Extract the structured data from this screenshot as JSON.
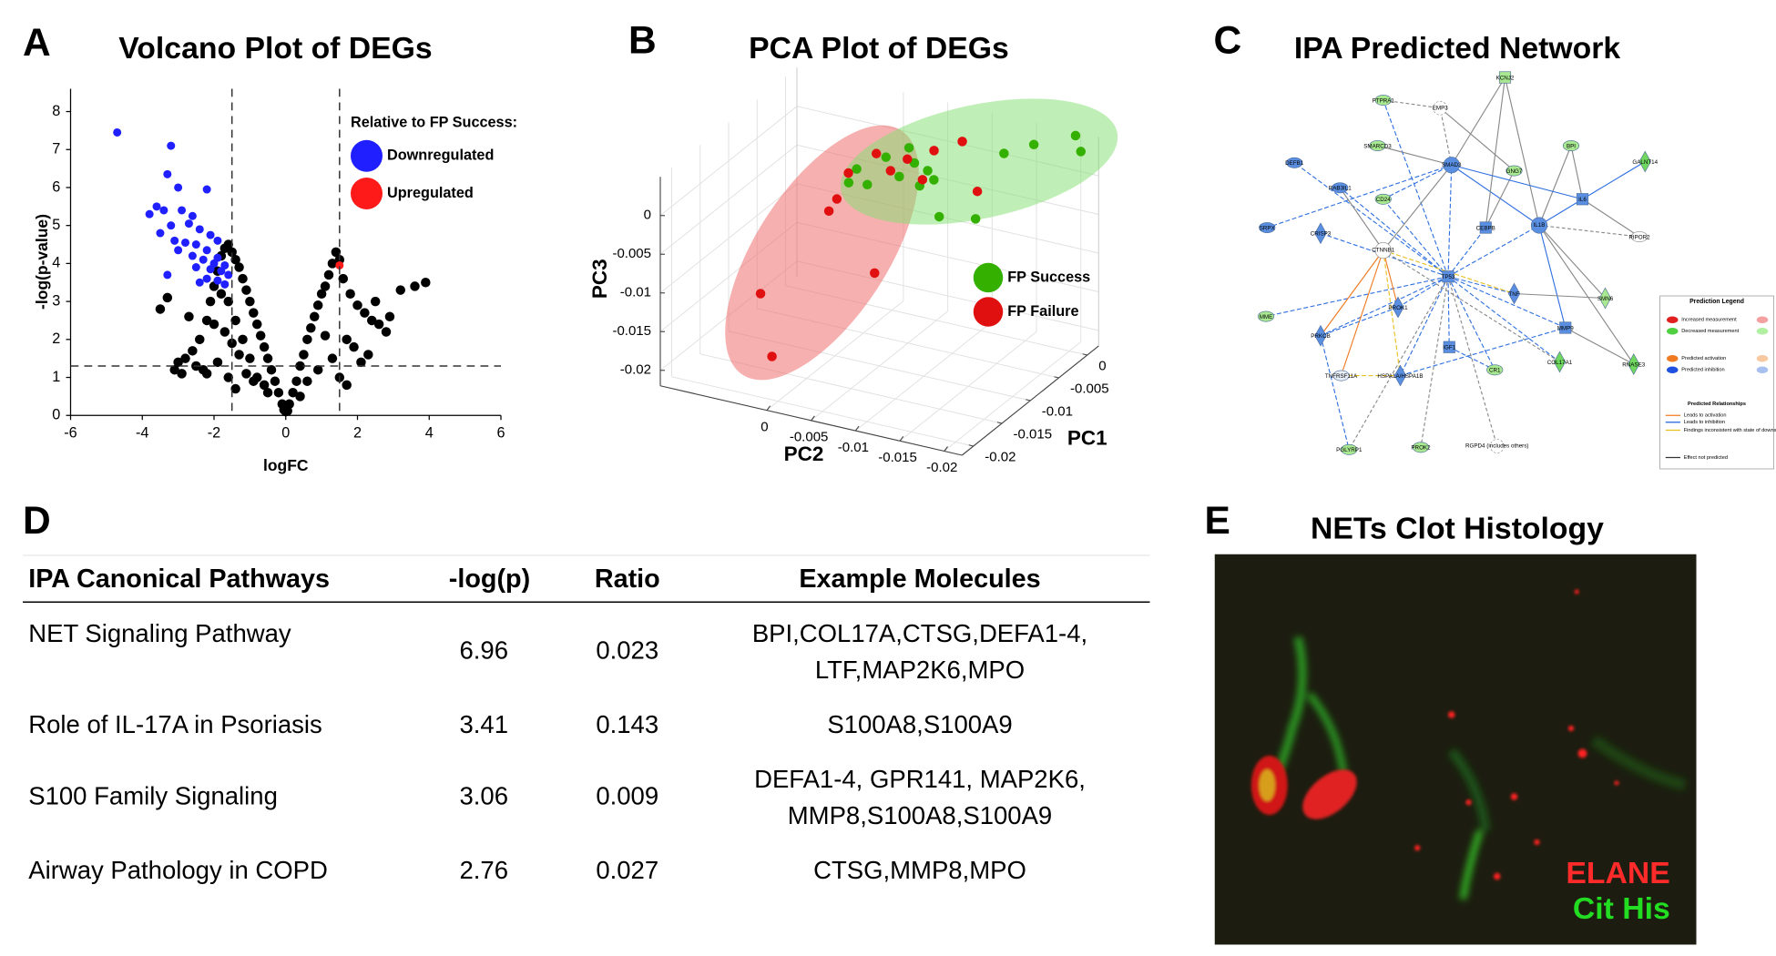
{
  "chart_data": [
    {
      "type": "scatter",
      "panel": "A",
      "title": "Volcano Plot of DEGs",
      "xlabel": "logFC",
      "ylabel": "-log(p-value)",
      "xlim": [
        -6,
        6
      ],
      "xticks": [
        -6,
        -4,
        -2,
        0,
        2,
        4,
        6
      ],
      "ylim": [
        0,
        8.6
      ],
      "yticks": [
        0,
        1,
        2,
        3,
        4,
        5,
        6,
        7,
        8
      ],
      "vlines": [
        -1.5,
        1.5
      ],
      "hlines": [
        1.3
      ],
      "legend_title": "Relative to FP Success:",
      "series": [
        {
          "color": "#000000",
          "x": [
            -0.1,
            -0.2,
            -0.3,
            -0.4,
            -0.5,
            -0.6,
            -0.7,
            -0.8,
            -0.9,
            -1.0,
            -1.1,
            -1.2,
            -1.3,
            -1.4,
            -1.5,
            -1.6,
            -1.7,
            -1.8,
            -1.9,
            -2.0,
            -2.1,
            -2.2,
            -2.4,
            -2.6,
            -2.8,
            -3.0,
            -3.3,
            -3.5,
            -0.5,
            -0.8,
            -1.0,
            -1.2,
            -1.4,
            -1.6,
            -1.8,
            -2.0,
            -1.1,
            -1.3,
            -1.5,
            -1.7,
            -0.9,
            -0.6,
            -2.3,
            -2.5,
            -2.7,
            -1.9,
            0.1,
            0.2,
            0.3,
            0.4,
            0.5,
            0.6,
            0.7,
            0.8,
            0.9,
            1.0,
            1.1,
            1.2,
            1.3,
            1.4,
            1.5,
            1.6,
            1.8,
            2.0,
            2.2,
            2.4,
            2.6,
            2.8,
            3.2,
            3.6,
            3.9,
            1.3,
            1.7,
            1.9,
            2.1,
            2.3,
            0.6,
            0.9,
            1.1,
            0.4,
            2.5,
            2.9,
            -3.1,
            -2.9,
            -1.6,
            -1.4,
            -2.2,
            1.7,
            1.5,
            0.0,
            -0.05,
            0.05
          ],
          "y": [
            0.3,
            0.6,
            0.9,
            1.2,
            1.5,
            1.8,
            2.1,
            2.4,
            2.7,
            3.0,
            3.3,
            3.6,
            3.9,
            4.1,
            4.3,
            4.5,
            4.4,
            4.2,
            3.8,
            3.4,
            3.0,
            2.5,
            2.0,
            1.7,
            1.5,
            1.4,
            3.1,
            2.8,
            0.6,
            1.0,
            1.5,
            2.0,
            2.5,
            3.0,
            3.2,
            2.4,
            1.1,
            1.6,
            1.9,
            2.2,
            0.9,
            0.8,
            1.2,
            1.3,
            2.6,
            1.4,
            0.3,
            0.6,
            0.9,
            1.3,
            1.6,
            2.0,
            2.3,
            2.6,
            2.9,
            3.2,
            3.4,
            3.7,
            4.0,
            4.3,
            4.1,
            3.6,
            3.2,
            2.9,
            2.7,
            2.5,
            2.4,
            2.2,
            3.3,
            3.4,
            3.5,
            1.5,
            2.0,
            1.8,
            1.4,
            1.6,
            0.9,
            1.2,
            2.1,
            0.5,
            3.0,
            2.6,
            1.2,
            1.1,
            1.0,
            0.7,
            1.1,
            0.8,
            1.0,
            0.1,
            0.15,
            0.12
          ]
        },
        {
          "name": "Downregulated",
          "color": "#1f1fff",
          "x": [
            -4.7,
            -3.2,
            -3.3,
            -3.0,
            -2.2,
            -3.6,
            -3.4,
            -2.9,
            -3.8,
            -2.6,
            -3.2,
            -2.7,
            -2.4,
            -3.5,
            -2.1,
            -1.9,
            -3.1,
            -2.5,
            -2.8,
            -3.0,
            -2.2,
            -2.6,
            -2.3,
            -1.9,
            -2.0,
            -1.7,
            -2.5,
            -1.8,
            -2.1,
            -3.3,
            -1.6,
            -2.2,
            -1.9,
            -2.4,
            -1.7
          ],
          "y": [
            7.45,
            7.1,
            6.35,
            6.0,
            5.95,
            5.5,
            5.4,
            5.4,
            5.3,
            5.25,
            5.0,
            5.05,
            4.9,
            4.8,
            4.75,
            4.6,
            4.6,
            4.5,
            4.55,
            4.35,
            4.35,
            4.2,
            4.1,
            4.15,
            4.0,
            3.95,
            3.9,
            3.8,
            3.85,
            3.7,
            3.7,
            3.6,
            3.55,
            3.5,
            3.45
          ]
        },
        {
          "name": "Upregulated",
          "color": "#ff1a1a",
          "x": [
            1.5
          ],
          "y": [
            3.95
          ]
        }
      ]
    },
    {
      "type": "scatter3d",
      "panel": "B",
      "title": "PCA Plot of DEGs",
      "xlabel": "PC1",
      "ylabel": "PC2",
      "zlabel": "PC3",
      "xlim": [
        -0.022,
        0.002
      ],
      "xticks": [
        0,
        -0.005,
        -0.01,
        -0.015,
        -0.02
      ],
      "ylim": [
        0.012,
        -0.022
      ],
      "yticks": [
        0,
        -0.005,
        -0.01,
        -0.015,
        -0.02
      ],
      "zlim": [
        -0.022,
        0.005
      ],
      "zticks": [
        0,
        -0.005,
        -0.01,
        -0.015,
        -0.02
      ],
      "grid": true,
      "series": [
        {
          "name": "FP Success",
          "color": "#33b000",
          "x": [
            -0.002,
            -0.002,
            -0.002,
            -0.002,
            -0.002,
            -0.002,
            -0.002,
            -0.002,
            -0.002,
            -0.002,
            -0.002,
            -0.002,
            -0.002,
            0.002,
            0.002,
            0.002
          ],
          "y": [
            0.0036,
            0.0027,
            0.0015,
            -0.0006,
            -0.0021,
            -0.0032,
            -0.0038,
            -0.0044,
            -0.0053,
            -0.006,
            -0.0066,
            -0.0107,
            -0.0139,
            -0.0147,
            -0.0194,
            -0.02
          ],
          "z": [
            -0.0053,
            -0.0033,
            -0.005,
            -0.0009,
            -0.003,
            0.001,
            -0.0008,
            -0.0036,
            -0.0014,
            -0.0024,
            -0.007,
            -0.0062,
            0.0031,
            0.0021,
            0.0045,
            0.0026
          ]
        },
        {
          "name": "FP Failure",
          "color": "#e01010",
          "x": [
            -0.01,
            -0.02,
            -0.01,
            -0.01,
            -0.016,
            -0.01,
            -0.004,
            -0.004,
            -0.004,
            -0.004,
            -0.004,
            -0.002,
            -0.002
          ],
          "y": [
            0.0084,
            0.0007,
            0.0007,
            -0.0002,
            -0.0083,
            -0.0015,
            -0.0008,
            -0.0024,
            -0.0043,
            -0.006,
            -0.0073,
            -0.0092,
            -0.0109
          ],
          "z": [
            -0.0162,
            -0.0164,
            -0.0035,
            -0.0017,
            -0.0056,
            0.002,
            0.0008,
            -0.001,
            0.001,
            -0.0012,
            0.0029,
            0.0034,
            -0.0026
          ]
        }
      ]
    }
  ],
  "network": {
    "panel": "C",
    "title": "IPA Predicted Network",
    "nodes": [
      "PTPRA1",
      "EMP3",
      "KCNJ2",
      "SMARCD3",
      "BPI",
      "GALNT14",
      "DEFB1",
      "RAB3IL1",
      "SMAD3",
      "GNG7",
      "CD24",
      "CEBPB",
      "CTNNB1",
      "TP53",
      "IL1B",
      "TNF",
      "RIPOR2",
      "SMN6",
      "MME",
      "PRKCB",
      "PROK1",
      "HSPA1A/HSPA1B",
      "TNFRSF11A",
      "CR1",
      "COL17A1",
      "MMP9",
      "RNASE3",
      "PGLYRP1",
      "PROK2",
      "RGPD4 (includes others)",
      "SRPX",
      "CRISP3",
      "IGF1",
      "IL6"
    ],
    "legend": {
      "title": "Prediction Legend",
      "items": [
        "Increased measurement",
        "Decreased measurement",
        "Predicted activation",
        "Predicted inhibition",
        "Predicted Relationships",
        "Leads to activation",
        "Leads to inhibition",
        "Findings inconsistent with state of downstream molecule",
        "Effect not predicted"
      ]
    }
  },
  "table": {
    "panel": "D",
    "headers": [
      "IPA Canonical Pathways",
      "-log(p)",
      "Ratio",
      "Example Molecules"
    ],
    "rows": [
      {
        "pathway": "NET Signaling Pathway",
        "logp": 6.96,
        "ratio": 0.023,
        "molecules": [
          "BPI,COL17A,CTSG,DEFA1-4,",
          "LTF,MAP2K6,MPO"
        ]
      },
      {
        "pathway": "Role of IL-17A in Psoriasis",
        "logp": 3.41,
        "ratio": 0.143,
        "molecules": [
          "S100A8,S100A9"
        ]
      },
      {
        "pathway": "S100 Family Signaling",
        "logp": 3.06,
        "ratio": 0.009,
        "molecules": [
          "DEFA1-4, GPR141, MAP2K6,",
          "MMP8,S100A8,S100A9"
        ]
      },
      {
        "pathway": "Airway Pathology in COPD",
        "logp": 2.76,
        "ratio": 0.027,
        "molecules": [
          "CTSG,MMP8,MPO"
        ]
      }
    ]
  },
  "histology": {
    "panel": "E",
    "title": "NETs Clot Histology",
    "stains": [
      {
        "name": "ELANE",
        "color": "#ff2a2a"
      },
      {
        "name": "Cit His",
        "color": "#22dd22"
      }
    ]
  }
}
